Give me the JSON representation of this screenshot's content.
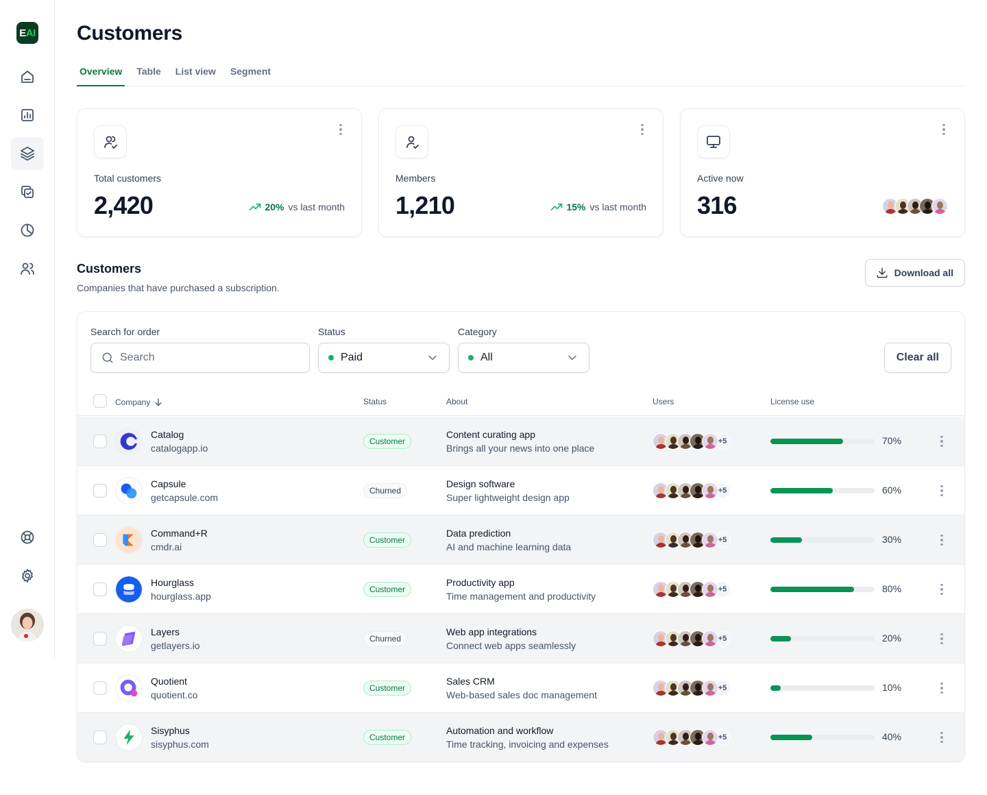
{
  "app": {
    "logo_main": "E",
    "logo_accent": "AI"
  },
  "page": {
    "title": "Customers"
  },
  "tabs": [
    {
      "label": "Overview"
    },
    {
      "label": "Table"
    },
    {
      "label": "List view"
    },
    {
      "label": "Segment"
    }
  ],
  "stats": {
    "total": {
      "label": "Total customers",
      "value": "2,420",
      "change": "20%",
      "vs": "vs last month"
    },
    "members": {
      "label": "Members",
      "value": "1,210",
      "change": "15%",
      "vs": "vs last month"
    },
    "active": {
      "label": "Active now",
      "value": "316"
    }
  },
  "section": {
    "title": "Customers",
    "subtitle": "Companies that have purchased a subscription.",
    "download_label": "Download all"
  },
  "filters": {
    "search_label": "Search for order",
    "search_placeholder": "Search",
    "status_label": "Status",
    "status_value": "Paid",
    "category_label": "Category",
    "category_value": "All",
    "clear_label": "Clear all"
  },
  "table": {
    "columns": {
      "company": "Company",
      "status": "Status",
      "about": "About",
      "users": "Users",
      "license": "License use"
    },
    "more_users": "+5",
    "rows": [
      {
        "name": "Catalog",
        "site": "catalogapp.io",
        "status": "Customer",
        "about_title": "Content curating app",
        "about_sub": "Brings all your news into one place",
        "license": 70,
        "license_label": "70%"
      },
      {
        "name": "Capsule",
        "site": "getcapsule.com",
        "status": "Churned",
        "about_title": "Design software",
        "about_sub": "Super lightweight design app",
        "license": 60,
        "license_label": "60%"
      },
      {
        "name": "Command+R",
        "site": "cmdr.ai",
        "status": "Customer",
        "about_title": "Data prediction",
        "about_sub": "AI and machine learning data",
        "license": 30,
        "license_label": "30%"
      },
      {
        "name": "Hourglass",
        "site": "hourglass.app",
        "status": "Customer",
        "about_title": "Productivity app",
        "about_sub": "Time management and productivity",
        "license": 80,
        "license_label": "80%"
      },
      {
        "name": "Layers",
        "site": "getlayers.io",
        "status": "Churned",
        "about_title": "Web app integrations",
        "about_sub": "Connect web apps seamlessly",
        "license": 20,
        "license_label": "20%"
      },
      {
        "name": "Quotient",
        "site": "quotient.co",
        "status": "Customer",
        "about_title": "Sales CRM",
        "about_sub": "Web-based sales doc management",
        "license": 10,
        "license_label": "10%"
      },
      {
        "name": "Sisyphus",
        "site": "sisyphus.com",
        "status": "Customer",
        "about_title": "Automation and workflow",
        "about_sub": "Time tracking, invoicing and expenses",
        "license": 40,
        "license_label": "40%"
      }
    ]
  },
  "colors": {
    "accent": "#0a7a3b",
    "progress": "#079455",
    "trend": "#17b26a"
  }
}
